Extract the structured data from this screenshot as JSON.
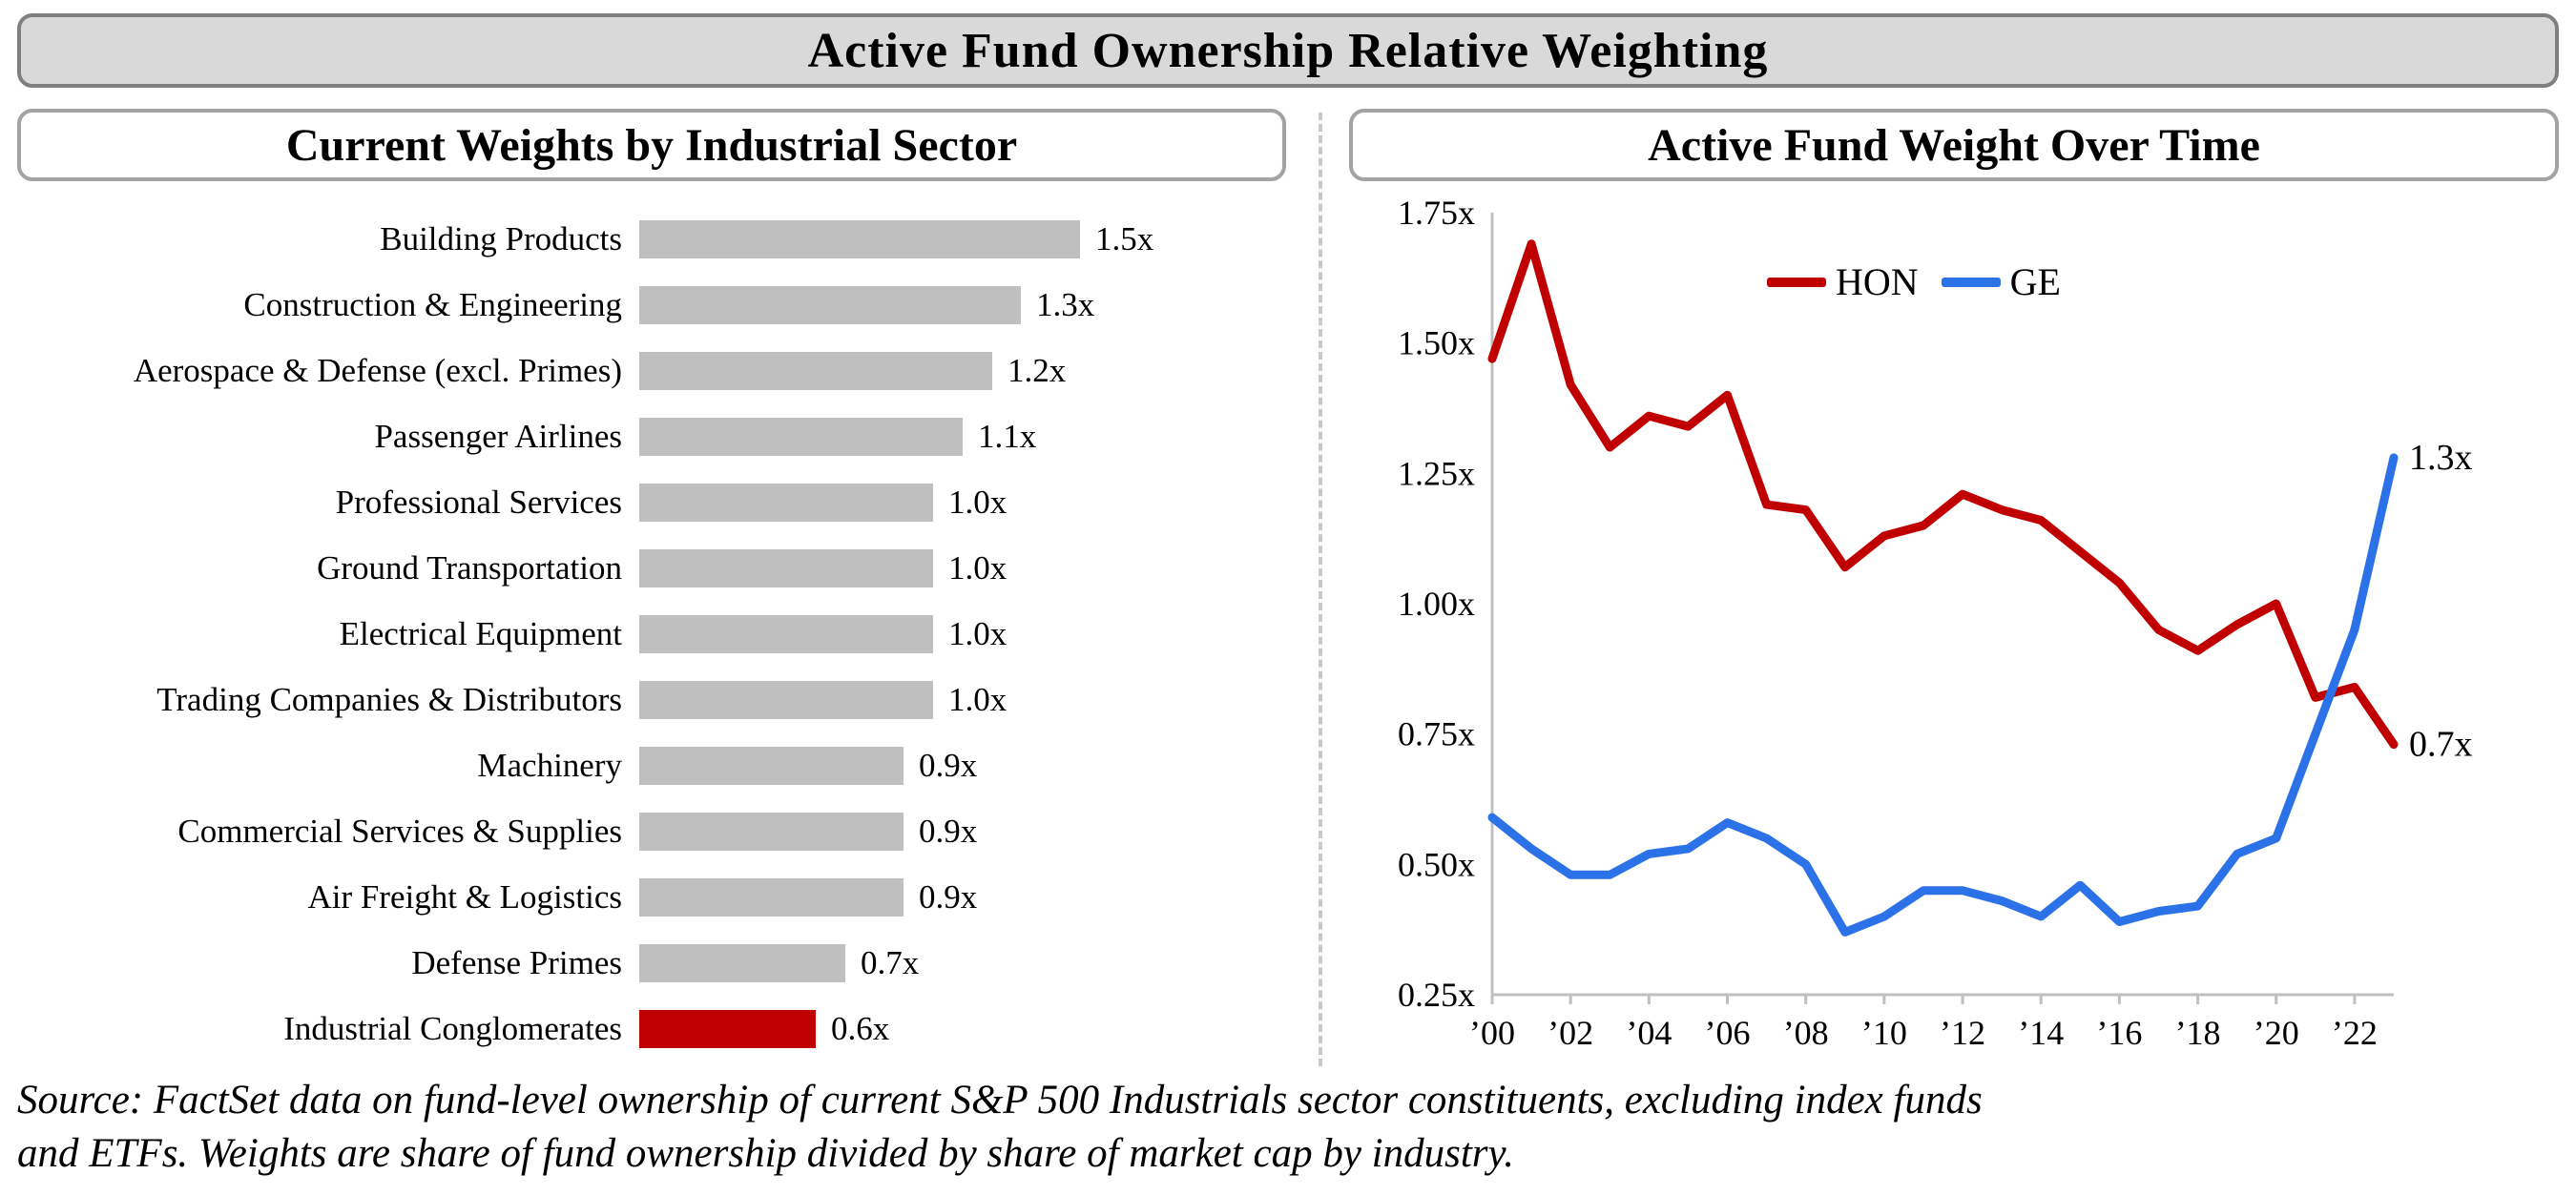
{
  "header": {
    "title": "Active Fund Ownership Relative Weighting"
  },
  "left_panel": {
    "title": "Current Weights by Industrial Sector"
  },
  "right_panel": {
    "title": "Active Fund Weight Over Time"
  },
  "source": {
    "line1": "Source: FactSet data on fund-level ownership of current S&P 500 Industrials sector constituents, excluding index funds",
    "line2": "and ETFs. Weights are share of fund ownership divided by share of market cap by industry."
  },
  "colors": {
    "bar_gray": "#bfbfbf",
    "bar_red": "#c00000",
    "hon_red": "#c00000",
    "ge_blue": "#2b72e8",
    "header_bg": "#d9d9d9",
    "box_border": "#7f7f7f",
    "axis_gray": "#bfbfbf"
  },
  "chart_data": [
    {
      "type": "bar",
      "orientation": "horizontal",
      "title": "Current Weights by Industrial Sector",
      "categories": [
        "Building Products",
        "Construction & Engineering",
        "Aerospace & Defense (excl. Primes)",
        "Passenger Airlines",
        "Professional Services",
        "Ground Transportation",
        "Electrical Equipment",
        "Trading Companies & Distributors",
        "Machinery",
        "Commercial Services & Supplies",
        "Air Freight & Logistics",
        "Defense Primes",
        "Industrial Conglomerates"
      ],
      "values": [
        1.5,
        1.3,
        1.2,
        1.1,
        1.0,
        1.0,
        1.0,
        1.0,
        0.9,
        0.9,
        0.9,
        0.7,
        0.6
      ],
      "value_labels": [
        "1.5x",
        "1.3x",
        "1.2x",
        "1.1x",
        "1.0x",
        "1.0x",
        "1.0x",
        "1.0x",
        "0.9x",
        "0.9x",
        "0.9x",
        "0.7x",
        "0.6x"
      ],
      "highlight_category": "Industrial Conglomerates",
      "xlim": [
        0,
        1.6
      ]
    },
    {
      "type": "line",
      "title": "Active Fund Weight Over Time",
      "x": [
        2000,
        2001,
        2002,
        2003,
        2004,
        2005,
        2006,
        2007,
        2008,
        2009,
        2010,
        2011,
        2012,
        2013,
        2014,
        2015,
        2016,
        2017,
        2018,
        2019,
        2020,
        2021,
        2022,
        2023
      ],
      "x_ticks": [
        2000,
        2002,
        2004,
        2006,
        2008,
        2010,
        2012,
        2014,
        2016,
        2018,
        2020,
        2022
      ],
      "x_tick_labels": [
        "’00",
        "’02",
        "’04",
        "’06",
        "’08",
        "’10",
        "’12",
        "’14",
        "’16",
        "’18",
        "’20",
        "’22"
      ],
      "ylim": [
        0.25,
        1.75
      ],
      "y_ticks": [
        0.25,
        0.5,
        0.75,
        1.0,
        1.25,
        1.5,
        1.75
      ],
      "y_tick_labels": [
        "0.25x",
        "0.50x",
        "0.75x",
        "1.00x",
        "1.25x",
        "1.50x",
        "1.75x"
      ],
      "grid": false,
      "legend_position": "top-center-inside",
      "series": [
        {
          "name": "HON",
          "color": "#c00000",
          "end_label": "0.7x",
          "values": [
            1.47,
            1.69,
            1.42,
            1.3,
            1.36,
            1.34,
            1.4,
            1.19,
            1.18,
            1.07,
            1.13,
            1.15,
            1.21,
            1.18,
            1.16,
            1.1,
            1.04,
            0.95,
            0.91,
            0.96,
            1.0,
            0.82,
            0.84,
            0.73
          ]
        },
        {
          "name": "GE",
          "color": "#2b72e8",
          "end_label": "1.3x",
          "values": [
            0.59,
            0.53,
            0.48,
            0.48,
            0.52,
            0.53,
            0.58,
            0.55,
            0.5,
            0.37,
            0.4,
            0.45,
            0.45,
            0.43,
            0.4,
            0.46,
            0.39,
            0.41,
            0.42,
            0.52,
            0.55,
            0.75,
            0.95,
            1.28
          ]
        }
      ]
    }
  ]
}
